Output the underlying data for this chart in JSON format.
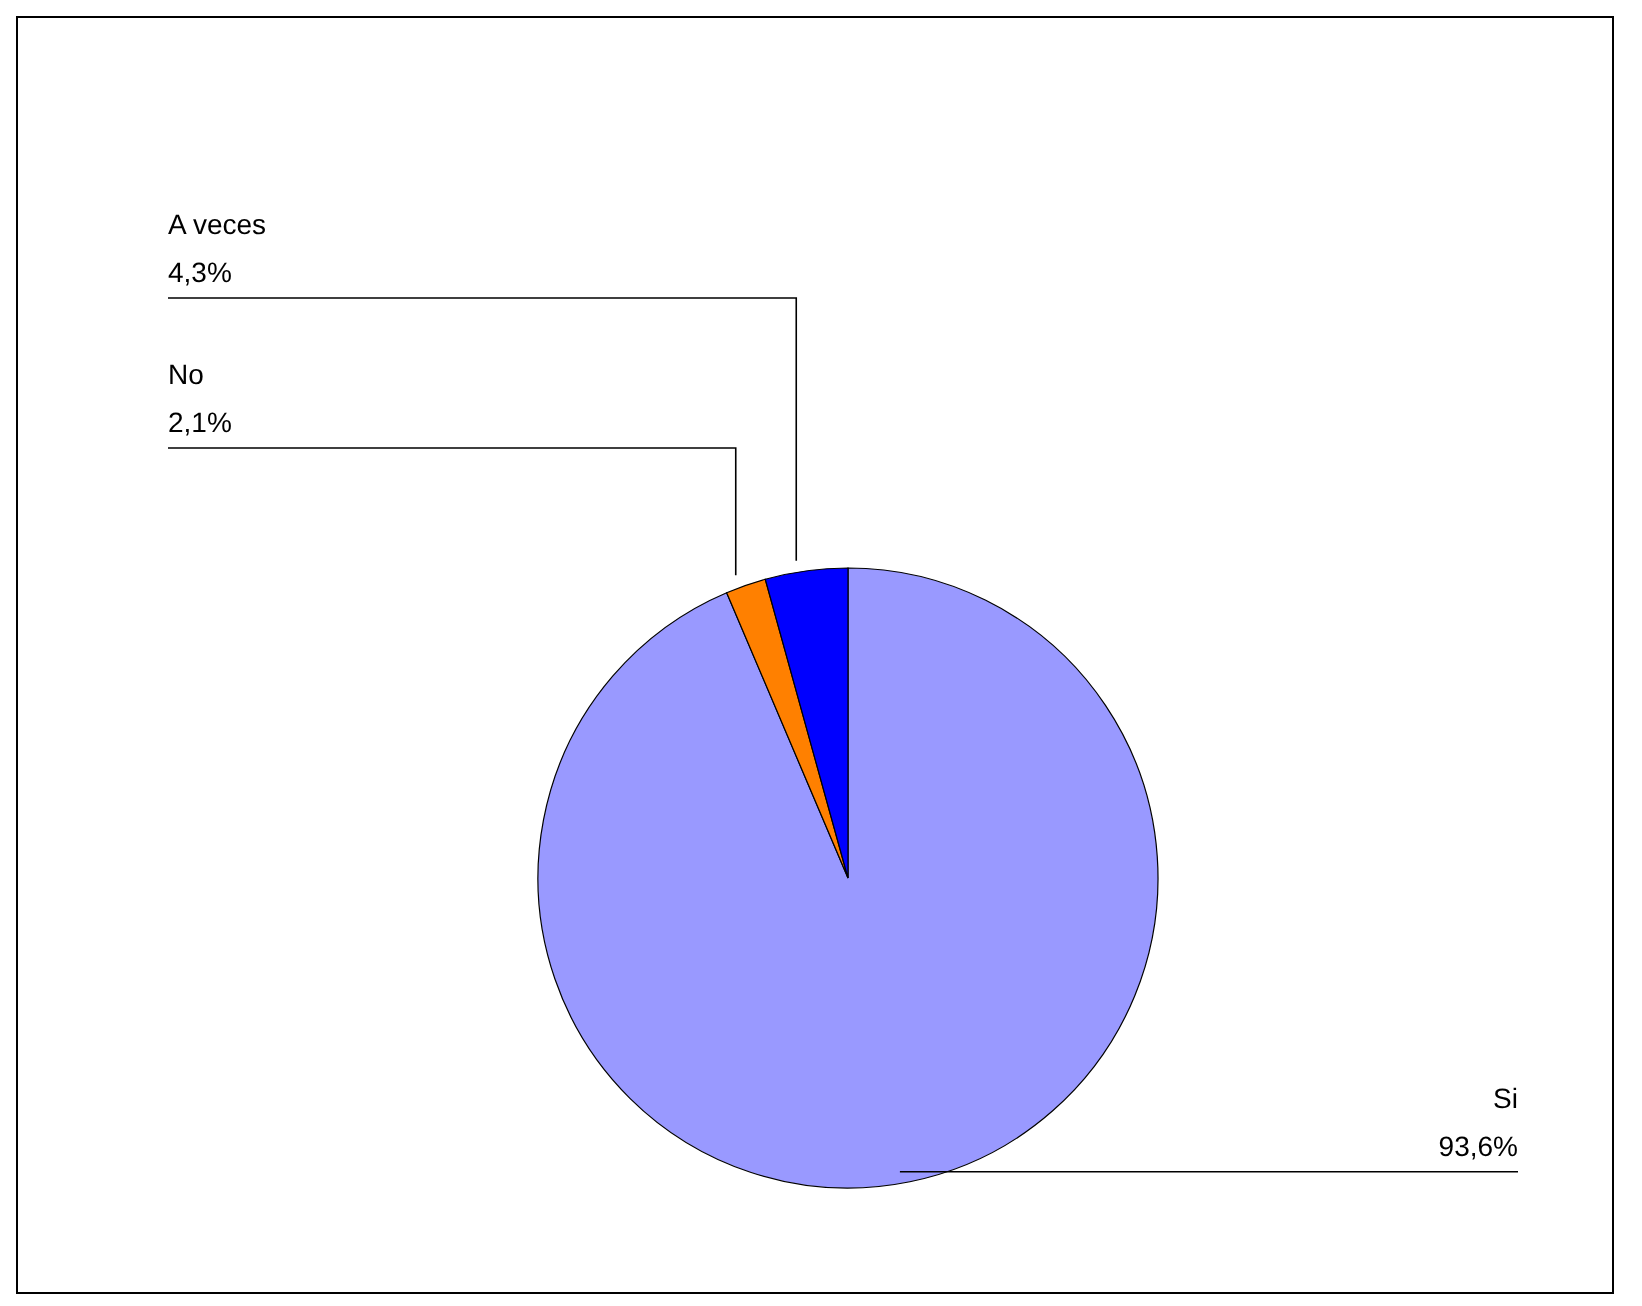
{
  "chart_data": {
    "type": "pie",
    "categories": [
      "Si",
      "No",
      "A veces"
    ],
    "values": [
      93.6,
      2.1,
      4.3
    ],
    "colors": [
      "#9999ff",
      "#ff8000",
      "#0000ff"
    ],
    "value_labels": [
      "93,6%",
      "2,1%",
      "4,3%"
    ],
    "legend": false
  }
}
